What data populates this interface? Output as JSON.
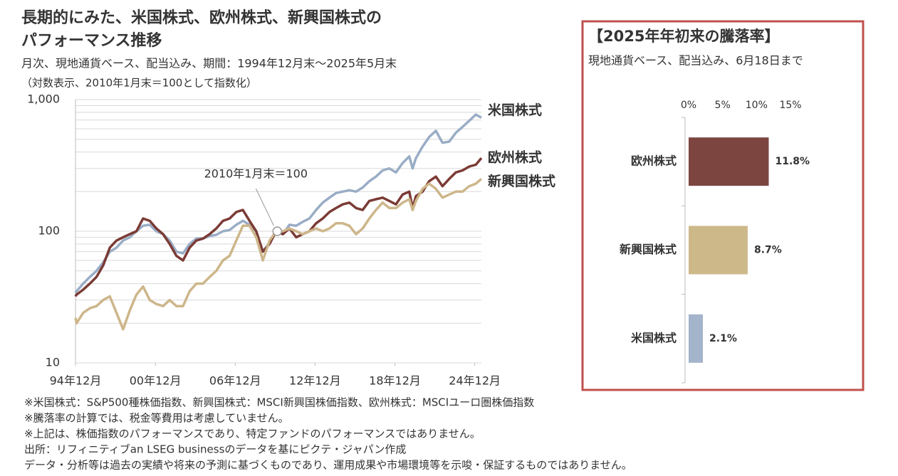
{
  "chart_data": [
    {
      "type": "line",
      "title_lines": [
        "長期的にみた、米国株式、欧州株式、新興国株式の",
        "パフォーマンス推移"
      ],
      "subtitle_lines": [
        "月次、現地通貨ベース、配当込み、期間：1994年12月末～2025年5月末",
        "（対数表示、2010年1月末＝100として指数化）"
      ],
      "log_scale": true,
      "grid": true,
      "ylim": [
        10,
        1000
      ],
      "yticks": [
        10,
        100,
        {
          "value": 1000,
          "label": "1,000"
        }
      ],
      "minor_yticks": [
        20,
        30,
        40,
        50,
        60,
        70,
        80,
        90,
        200,
        300,
        400,
        500,
        600,
        700,
        800,
        900
      ],
      "xlim": [
        1994.92,
        2025.42
      ],
      "xticks": [
        {
          "value": 1994.92,
          "label": "94年12月"
        },
        {
          "value": 2000.92,
          "label": "00年12月"
        },
        {
          "value": 2006.92,
          "label": "06年12月"
        },
        {
          "value": 2012.92,
          "label": "12年12月"
        },
        {
          "value": 2018.92,
          "label": "18年12月"
        },
        {
          "value": 2024.92,
          "label": "24年12月"
        }
      ],
      "annotations": [
        {
          "text": "2010年1月末＝100",
          "x": 2010.08,
          "y": 100
        }
      ],
      "x": [
        1994.92,
        1995,
        1995.5,
        1996,
        1996.5,
        1997,
        1997.5,
        1998,
        1998.5,
        1999,
        1999.5,
        2000,
        2000.5,
        2001,
        2001.5,
        2002,
        2002.5,
        2003,
        2003.5,
        2004,
        2004.5,
        2005,
        2005.5,
        2006,
        2006.5,
        2007,
        2007.5,
        2008,
        2008.5,
        2009,
        2009.5,
        2010,
        2010.5,
        2011,
        2011.5,
        2012,
        2012.5,
        2013,
        2013.5,
        2014,
        2014.5,
        2015,
        2015.5,
        2016,
        2016.5,
        2017,
        2017.5,
        2018,
        2018.5,
        2019,
        2019.5,
        2020,
        2020.25,
        2020.5,
        2021,
        2021.5,
        2022,
        2022.5,
        2023,
        2023.5,
        2024,
        2024.5,
        2025,
        2025.42
      ],
      "series": [
        {
          "name": "米国株式",
          "color": "#9aadc6",
          "label_color": "#3f5f8f",
          "values": [
            34,
            35,
            40,
            45,
            50,
            58,
            70,
            75,
            85,
            90,
            100,
            110,
            112,
            100,
            95,
            85,
            70,
            68,
            80,
            88,
            88,
            92,
            94,
            100,
            102,
            112,
            120,
            112,
            100,
            70,
            82,
            100,
            95,
            112,
            110,
            118,
            125,
            145,
            165,
            180,
            195,
            200,
            205,
            200,
            215,
            240,
            260,
            290,
            300,
            280,
            330,
            370,
            300,
            360,
            440,
            520,
            580,
            470,
            480,
            560,
            620,
            690,
            770,
            730
          ]
        },
        {
          "name": "欧州株式",
          "color": "#7b3b35",
          "label_color": "#7b3b35",
          "values": [
            32,
            33,
            36,
            40,
            45,
            55,
            75,
            85,
            90,
            95,
            100,
            125,
            120,
            105,
            95,
            80,
            65,
            60,
            75,
            85,
            88,
            95,
            105,
            120,
            125,
            140,
            145,
            120,
            100,
            70,
            80,
            100,
            95,
            105,
            90,
            95,
            100,
            115,
            125,
            140,
            150,
            160,
            165,
            150,
            145,
            170,
            175,
            180,
            170,
            160,
            190,
            200,
            150,
            185,
            200,
            240,
            260,
            220,
            250,
            280,
            290,
            310,
            320,
            360
          ]
        },
        {
          "name": "新興国株式",
          "color": "#cdb68a",
          "label_color": "#c8ab78",
          "values": [
            22,
            20,
            24,
            26,
            27,
            30,
            32,
            24,
            18,
            25,
            33,
            38,
            30,
            28,
            27,
            30,
            27,
            27,
            35,
            40,
            40,
            45,
            50,
            60,
            65,
            85,
            110,
            110,
            90,
            60,
            85,
            100,
            100,
            105,
            100,
            95,
            100,
            105,
            100,
            105,
            115,
            115,
            110,
            95,
            105,
            125,
            145,
            165,
            150,
            150,
            165,
            175,
            145,
            170,
            210,
            230,
            210,
            180,
            190,
            200,
            200,
            220,
            230,
            250
          ]
        }
      ]
    },
    {
      "type": "hbar",
      "title": "【2025年年初来の騰落率】",
      "subtitle": "現地通貨ベース、配当込み、6月18日まで",
      "frame_color": "#c0504d",
      "categories": [
        "欧州株式",
        "新興国株式",
        "米国株式"
      ],
      "values": [
        11.8,
        8.7,
        2.1
      ],
      "value_labels": [
        "11.8%",
        "8.7%",
        "2.1%"
      ],
      "colors": [
        "#7d4540",
        "#cdb88a",
        "#a3b4cb"
      ],
      "xlim": [
        0,
        15
      ],
      "xticks": [
        {
          "value": 0,
          "label": "0%"
        },
        {
          "value": 5,
          "label": "5%"
        },
        {
          "value": 10,
          "label": "10%"
        },
        {
          "value": 15,
          "label": "15%"
        }
      ]
    }
  ],
  "footnotes": [
    "※米国株式：S&P500種株価指数、新興国株式：MSCI新興国株価指数、欧州株式：MSCIユーロ圏株価指数",
    "※騰落率の計算では、税金等費用は考慮していません。",
    "※上記は、株価指数のパフォーマンスであり、特定ファンドのパフォーマンスではありません。",
    "出所：リフィニティブan LSEG businessのデータを基にピクテ・ジャパン作成",
    "データ・分析等は過去の実績や将来の予測に基づくものであり、運用成果や市場環境等を示唆・保証するものではありません。"
  ]
}
